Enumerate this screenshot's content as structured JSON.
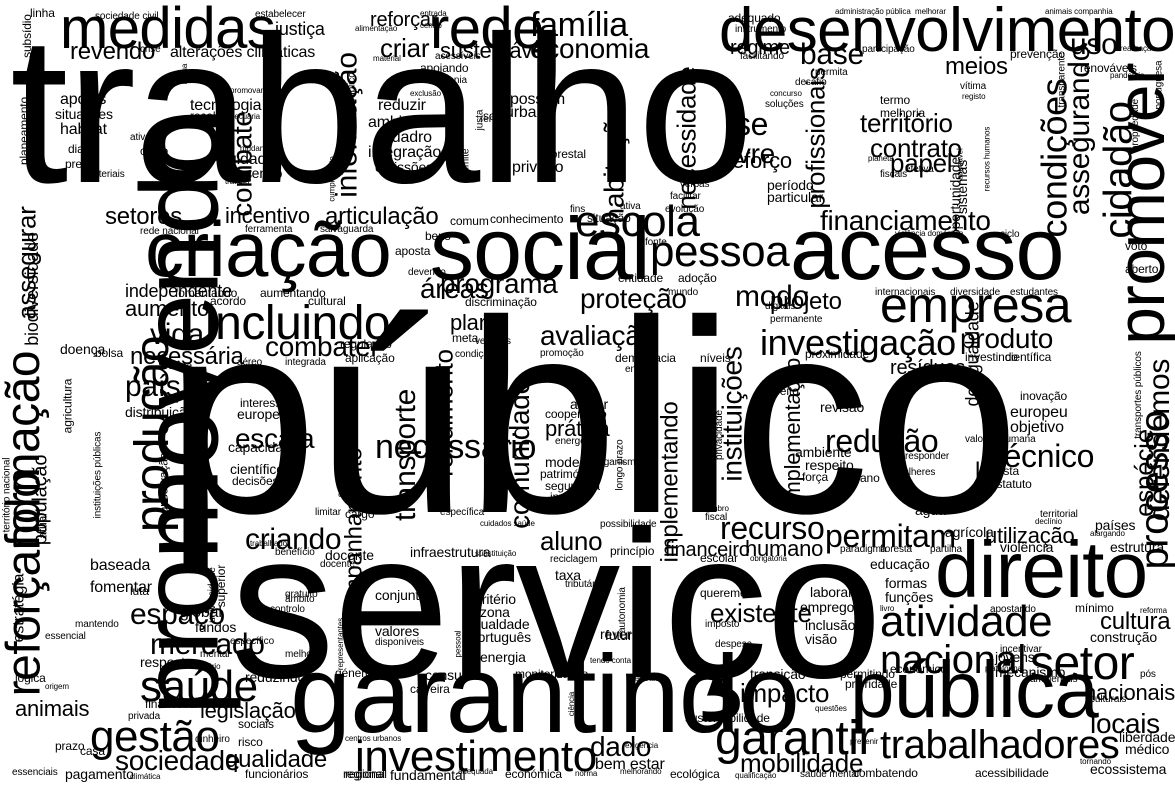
{
  "words": [
    {
      "text": "trabalho"
    },
    {
      "text": "público"
    },
    {
      "text": "serviço"
    },
    {
      "text": "promovendo"
    },
    {
      "text": "garantindo"
    },
    {
      "text": "social"
    },
    {
      "text": "acesso"
    },
    {
      "text": "criação"
    },
    {
      "text": "direito"
    },
    {
      "text": "pública"
    },
    {
      "text": "desenvolvimento"
    },
    {
      "text": "promover"
    },
    {
      "text": "rede"
    },
    {
      "text": "medidas"
    },
    {
      "text": "reforçando"
    },
    {
      "text": "formação"
    },
    {
      "text": "produção"
    },
    {
      "text": "empresa"
    },
    {
      "text": "incluindo"
    },
    {
      "text": "escola"
    },
    {
      "text": "pessoa"
    },
    {
      "text": "setor"
    },
    {
      "text": "atividade"
    },
    {
      "text": "gestão"
    },
    {
      "text": "saúde"
    },
    {
      "text": "investimento"
    },
    {
      "text": "trabalhadores"
    },
    {
      "text": "garantir"
    },
    {
      "text": "nacional"
    },
    {
      "text": "cidadão"
    },
    {
      "text": "condições"
    },
    {
      "text": "processo"
    },
    {
      "text": "investigação"
    },
    {
      "text": "redução"
    },
    {
      "text": "necessário"
    },
    {
      "text": "recurso"
    },
    {
      "text": "permitam"
    },
    {
      "text": "família"
    },
    {
      "text": "economia"
    },
    {
      "text": "informação"
    },
    {
      "text": "combate"
    },
    {
      "text": "habitação"
    },
    {
      "text": "necessidade"
    },
    {
      "text": "transporte"
    },
    {
      "text": "comunidade"
    },
    {
      "text": "instituições"
    },
    {
      "text": "acompanhamento"
    },
    {
      "text": "rendimento"
    },
    {
      "text": "implementando"
    },
    {
      "text": "espaço"
    },
    {
      "text": "mercado"
    },
    {
      "text": "escala"
    },
    {
      "text": "criando"
    },
    {
      "text": "sociedade"
    },
    {
      "text": "qualidade"
    },
    {
      "text": "dado"
    },
    {
      "text": "mobilidade"
    },
    {
      "text": "locais"
    },
    {
      "text": "defendemos"
    },
    {
      "text": "espécie"
    },
    {
      "text": "técnico"
    },
    {
      "text": "impacto"
    },
    {
      "text": "financiamento"
    },
    {
      "text": "programa"
    },
    {
      "text": "proteção"
    },
    {
      "text": "avaliação"
    },
    {
      "text": "combater"
    },
    {
      "text": "modo"
    },
    {
      "text": "áreas"
    },
    {
      "text": "projeto"
    },
    {
      "text": "produto"
    },
    {
      "text": "cultura"
    },
    {
      "text": "base"
    },
    {
      "text": "uso"
    },
    {
      "text": "criar"
    },
    {
      "text": "revendo"
    },
    {
      "text": "assegurar"
    },
    {
      "text": "assegurando"
    },
    {
      "text": "território"
    },
    {
      "text": "contrato"
    },
    {
      "text": "papel"
    },
    {
      "text": "profissionais"
    },
    {
      "text": "livre"
    },
    {
      "text": "se"
    },
    {
      "text": "meios"
    },
    {
      "text": "sustentável"
    },
    {
      "text": "setores"
    },
    {
      "text": "incentivo"
    },
    {
      "text": "articulação"
    },
    {
      "text": "vida"
    },
    {
      "text": "necessária"
    },
    {
      "text": "país"
    },
    {
      "text": "aluno"
    },
    {
      "text": "prática"
    },
    {
      "text": "reforço"
    },
    {
      "text": "aumento"
    },
    {
      "text": "plano"
    },
    {
      "text": "independente"
    },
    {
      "text": "humano"
    },
    {
      "text": "financeiro"
    },
    {
      "text": "existente"
    },
    {
      "text": "legislação"
    },
    {
      "text": "animais"
    },
    {
      "text": "nacionais"
    },
    {
      "text": "utilização"
    },
    {
      "text": "resíduos"
    },
    {
      "text": "lei"
    },
    {
      "text": "biodiversidade"
    },
    {
      "text": "desigualdade"
    },
    {
      "text": "implementação"
    },
    {
      "text": "população"
    },
    {
      "text": "reforçar"
    },
    {
      "text": "regime"
    },
    {
      "text": "justiça"
    },
    {
      "text": "alterações climáticas"
    },
    {
      "text": "tecnologia"
    },
    {
      "text": "ambiental"
    },
    {
      "text": "integração"
    },
    {
      "text": "reduzir"
    },
    {
      "text": "quadro"
    },
    {
      "text": "emissões"
    },
    {
      "text": "urbano"
    },
    {
      "text": "possam"
    },
    {
      "text": "privado"
    },
    {
      "text": "cuidados"
    },
    {
      "text": "prevendo"
    },
    {
      "text": "habitat"
    },
    {
      "text": "apoios"
    },
    {
      "text": "situações"
    },
    {
      "text": "período"
    },
    {
      "text": "particular"
    },
    {
      "text": "oportunidade"
    },
    {
      "text": "sistemas"
    },
    {
      "text": "inovação"
    },
    {
      "text": "europeu"
    },
    {
      "text": "objetivo"
    },
    {
      "text": "revisão"
    },
    {
      "text": "ambiente"
    },
    {
      "text": "respeito"
    },
    {
      "text": "apoiar"
    },
    {
      "text": "cooperação"
    },
    {
      "text": "modelo"
    },
    {
      "text": "património"
    },
    {
      "text": "segurança"
    },
    {
      "text": "investir"
    },
    {
      "text": "estratégia"
    },
    {
      "text": "fomentar"
    },
    {
      "text": "baseada"
    },
    {
      "text": "global"
    },
    {
      "text": "fundos"
    },
    {
      "text": "conjunto"
    },
    {
      "text": "critério"
    },
    {
      "text": "zona"
    },
    {
      "text": "igualdade"
    },
    {
      "text": "português"
    },
    {
      "text": "energia"
    },
    {
      "text": "valores"
    },
    {
      "text": "resposta"
    },
    {
      "text": "reduzindo"
    },
    {
      "text": "carreira"
    },
    {
      "text": "consumo"
    },
    {
      "text": "monitorização"
    },
    {
      "text": "futuro"
    },
    {
      "text": "rever"
    },
    {
      "text": "inclusão"
    },
    {
      "text": "visão"
    },
    {
      "text": "emprego"
    },
    {
      "text": "laboral"
    },
    {
      "text": "queremos"
    },
    {
      "text": "transição"
    },
    {
      "text": "permitindo"
    },
    {
      "text": "económico"
    },
    {
      "text": "educação"
    },
    {
      "text": "formas"
    },
    {
      "text": "funções"
    },
    {
      "text": "jovens"
    },
    {
      "text": "mecanismo"
    },
    {
      "text": "construção"
    },
    {
      "text": "mínimo"
    },
    {
      "text": "liberdade"
    },
    {
      "text": "médico"
    },
    {
      "text": "ecossistema"
    },
    {
      "text": "bem estar"
    },
    {
      "text": "económica"
    },
    {
      "text": "fundamental"
    },
    {
      "text": "pagamento"
    },
    {
      "text": "essenciais"
    },
    {
      "text": "funcionários"
    },
    {
      "text": "regional"
    },
    {
      "text": "combatendo"
    },
    {
      "text": "acessibilidade"
    },
    {
      "text": "estrutura"
    },
    {
      "text": "violência"
    },
    {
      "text": "países"
    },
    {
      "text": "agrícola"
    },
    {
      "text": "água"
    },
    {
      "text": "docente"
    },
    {
      "text": "infraestrutura"
    },
    {
      "text": "princípio"
    },
    {
      "text": "taxa"
    },
    {
      "text": "escolar"
    },
    {
      "text": "distribuição"
    },
    {
      "text": "capacidade"
    },
    {
      "text": "científico"
    },
    {
      "text": "decisões"
    },
    {
      "text": "entidade"
    },
    {
      "text": "adoção"
    },
    {
      "text": "discriminação"
    },
    {
      "text": "conhecimento"
    },
    {
      "text": "situação"
    },
    {
      "text": "financeira"
    },
    {
      "text": "casa"
    },
    {
      "text": "prazo"
    },
    {
      "text": "lógica"
    },
    {
      "text": "sociais"
    },
    {
      "text": "risco"
    },
    {
      "text": "sustentabilidade"
    },
    {
      "text": "prioridade"
    },
    {
      "text": "democracia"
    },
    {
      "text": "doença"
    },
    {
      "text": "bolsa"
    },
    {
      "text": "crime"
    },
    {
      "text": "regulação"
    },
    {
      "text": "aplicação"
    },
    {
      "text": "meta"
    },
    {
      "text": "ensino"
    },
    {
      "text": "interesse"
    },
    {
      "text": "europeia"
    },
    {
      "text": "contexto"
    },
    {
      "text": "proximidade"
    },
    {
      "text": "científica"
    },
    {
      "text": "investindo"
    },
    {
      "text": "níveis"
    },
    {
      "text": "efeito"
    },
    {
      "text": "permanente"
    },
    {
      "text": "internacionais"
    },
    {
      "text": "diversidade"
    },
    {
      "text": "estudantes"
    },
    {
      "text": "aberto"
    },
    {
      "text": "voto"
    },
    {
      "text": "renováveis"
    },
    {
      "text": "prevenção"
    },
    {
      "text": "participação"
    },
    {
      "text": "facilitando"
    },
    {
      "text": "desafio"
    },
    {
      "text": "permita"
    },
    {
      "text": "vítima"
    },
    {
      "text": "transparente"
    },
    {
      "text": "propriedade"
    },
    {
      "text": "portuguesa"
    },
    {
      "text": "adequado"
    },
    {
      "text": "instrumento"
    },
    {
      "text": "apoiando"
    },
    {
      "text": "cidadania"
    },
    {
      "text": "solo"
    },
    {
      "text": "florestal"
    },
    {
      "text": "recolha"
    },
    {
      "text": "equipamento"
    },
    {
      "text": "custo"
    },
    {
      "text": "planeamento"
    },
    {
      "text": "materiais"
    },
    {
      "text": "preço"
    },
    {
      "text": "dia"
    },
    {
      "text": "linha"
    },
    {
      "text": "subsídio"
    },
    {
      "text": "cargo"
    },
    {
      "text": "mental"
    },
    {
      "text": "atual"
    },
    {
      "text": "aposta"
    },
    {
      "text": "comum"
    },
    {
      "text": "bens"
    },
    {
      "text": "luta"
    },
    {
      "text": "acordo"
    },
    {
      "text": "fomentando"
    },
    {
      "text": "aumentando"
    },
    {
      "text": "cultural"
    },
    {
      "text": "possibilidade"
    },
    {
      "text": "digitais"
    },
    {
      "text": "promoção"
    },
    {
      "text": "fiscal"
    },
    {
      "text": "força"
    },
    {
      "text": "vista"
    },
    {
      "text": "estatuto"
    },
    {
      "text": "ano"
    },
    {
      "text": "contratação"
    },
    {
      "text": "agricultura"
    },
    {
      "text": "natureza"
    },
    {
      "text": "conservação"
    },
    {
      "text": "superior"
    },
    {
      "text": "universidade"
    },
    {
      "text": "ação"
    },
    {
      "text": "género"
    },
    {
      "text": "disponíveis"
    },
    {
      "text": "gratuito"
    },
    {
      "text": "tributária"
    },
    {
      "text": "serviços públicos"
    },
    {
      "text": "energética"
    },
    {
      "text": "veículos"
    },
    {
      "text": "condição"
    },
    {
      "text": "urbana"
    },
    {
      "text": "integrada"
    },
    {
      "text": "aéreo"
    },
    {
      "text": "limitar"
    },
    {
      "text": "ferramenta"
    },
    {
      "text": "salvaguarda"
    },
    {
      "text": "devendo"
    },
    {
      "text": "ciclo"
    },
    {
      "text": "ativo"
    },
    {
      "text": "fins"
    },
    {
      "text": "ativa"
    },
    {
      "text": "evolução"
    },
    {
      "text": "organismo"
    },
    {
      "text": "fonte"
    },
    {
      "text": "mundo"
    },
    {
      "text": "longo prazo"
    },
    {
      "text": "privacidade"
    },
    {
      "text": "mulheres"
    },
    {
      "text": "responder"
    },
    {
      "text": "valorizar"
    },
    {
      "text": "humana"
    },
    {
      "text": "território nacional"
    },
    {
      "text": "instituições públicas"
    },
    {
      "text": "centros urbanos"
    },
    {
      "text": "cuidados saúde"
    },
    {
      "text": "saúde mental"
    },
    {
      "text": "recursos humanos"
    },
    {
      "text": "transportes públicos"
    },
    {
      "text": "violência doméstica"
    },
    {
      "text": "espaço público"
    },
    {
      "text": "rede nacional"
    },
    {
      "text": "sociedade civil"
    },
    {
      "text": "administração pública"
    },
    {
      "text": "animais companhia"
    },
    {
      "text": "estabelecer"
    },
    {
      "text": "entrada"
    },
    {
      "text": "melhorar"
    },
    {
      "text": "crise"
    },
    {
      "text": "inclua"
    },
    {
      "text": "saudável"
    },
    {
      "text": "realização"
    },
    {
      "text": "pandemia"
    },
    {
      "text": "registo"
    },
    {
      "text": "termo"
    },
    {
      "text": "melhoria"
    },
    {
      "text": "fiscais"
    },
    {
      "text": "planeta"
    },
    {
      "text": "efetiva"
    },
    {
      "text": "cumprimento"
    },
    {
      "text": "mudança"
    },
    {
      "text": "tratado"
    },
    {
      "text": "justa"
    },
    {
      "text": "renda"
    },
    {
      "text": "limite"
    },
    {
      "text": "verbas"
    },
    {
      "text": "facilitar"
    },
    {
      "text": "concurso"
    },
    {
      "text": "soluções"
    },
    {
      "text": "promovam"
    },
    {
      "text": "pecuária"
    },
    {
      "text": "exclusão"
    },
    {
      "text": "material"
    },
    {
      "text": "acessíveis"
    },
    {
      "text": "alimentação"
    },
    {
      "text": "centro"
    },
    {
      "text": "comunitário"
    },
    {
      "text": "específico"
    },
    {
      "text": "melhor"
    },
    {
      "text": "mantendo"
    },
    {
      "text": "essencial"
    },
    {
      "text": "origem"
    },
    {
      "text": "privada"
    },
    {
      "text": "representantes"
    },
    {
      "text": "âmbito"
    },
    {
      "text": "controlo"
    },
    {
      "text": "específica"
    },
    {
      "text": "ciência"
    },
    {
      "text": "comunicação"
    },
    {
      "text": "despesa"
    },
    {
      "text": "imposto"
    },
    {
      "text": "obrigatória"
    },
    {
      "text": "membro"
    },
    {
      "text": "reciclagem"
    },
    {
      "text": "substituição"
    },
    {
      "text": "pessoal"
    },
    {
      "text": "autonomia"
    },
    {
      "text": "relevante"
    },
    {
      "text": "tendo conta"
    },
    {
      "text": "questões"
    },
    {
      "text": "melhorando"
    },
    {
      "text": "adequada"
    },
    {
      "text": "qualificação"
    },
    {
      "text": "exigência"
    },
    {
      "text": "norma"
    },
    {
      "text": "ecológica"
    },
    {
      "text": "regional"
    },
    {
      "text": "climática"
    },
    {
      "text": "tornando"
    },
    {
      "text": "prevenir"
    },
    {
      "text": "ambientais"
    },
    {
      "text": "incentivar"
    },
    {
      "text": "plataforma"
    },
    {
      "text": "apostando"
    },
    {
      "text": "livro"
    },
    {
      "text": "pós"
    },
    {
      "text": "culturais"
    },
    {
      "text": "reforma"
    },
    {
      "text": "alargando"
    },
    {
      "text": "declínio"
    },
    {
      "text": "territorial"
    },
    {
      "text": "floresta"
    },
    {
      "text": "partilha"
    },
    {
      "text": "paradigma"
    },
    {
      "text": "docente"
    },
    {
      "text": "benefício"
    },
    {
      "text": "dinheiro"
    },
    {
      "text": "trabalhador"
    }
  ]
}
